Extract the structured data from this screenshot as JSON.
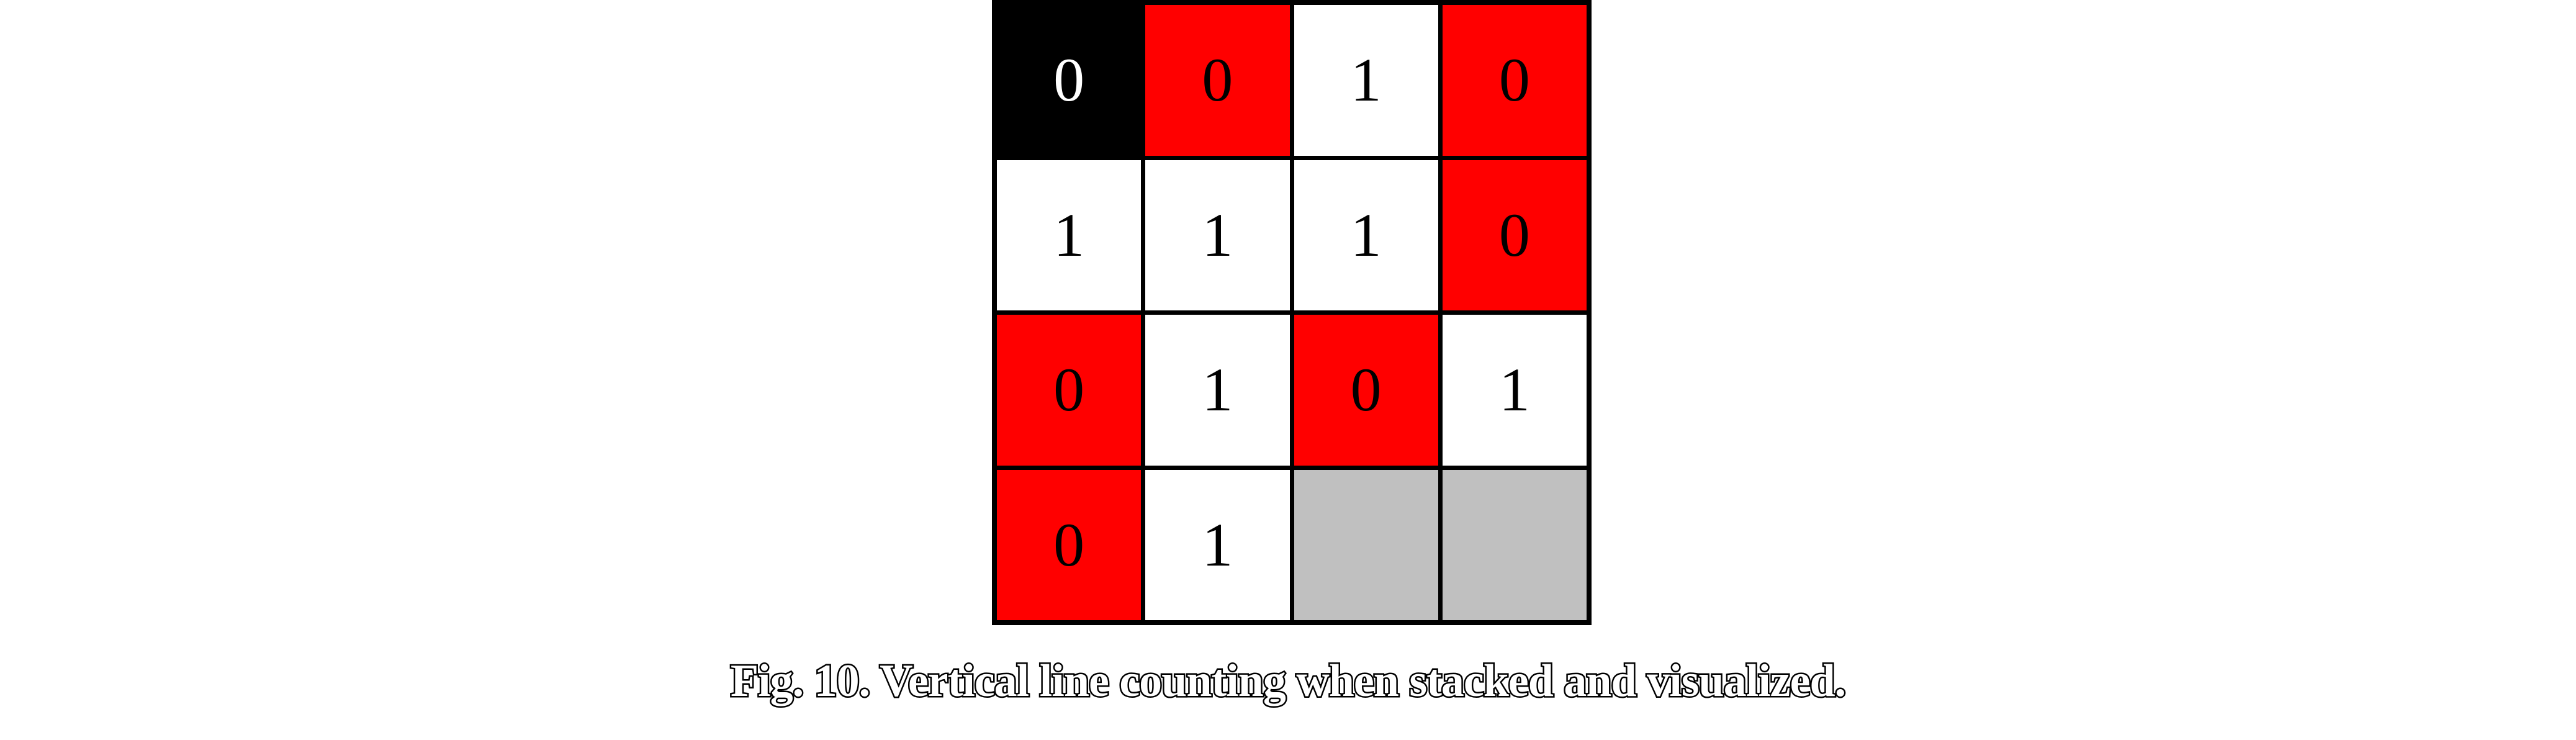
{
  "grid": {
    "rows": [
      [
        {
          "value": "0",
          "color": "black"
        },
        {
          "value": "0",
          "color": "red"
        },
        {
          "value": "1",
          "color": "white"
        },
        {
          "value": "0",
          "color": "red"
        }
      ],
      [
        {
          "value": "1",
          "color": "white"
        },
        {
          "value": "1",
          "color": "white"
        },
        {
          "value": "1",
          "color": "white"
        },
        {
          "value": "0",
          "color": "red"
        }
      ],
      [
        {
          "value": "0",
          "color": "red"
        },
        {
          "value": "1",
          "color": "white"
        },
        {
          "value": "0",
          "color": "red"
        },
        {
          "value": "1",
          "color": "white"
        }
      ],
      [
        {
          "value": "0",
          "color": "red"
        },
        {
          "value": "1",
          "color": "white"
        },
        {
          "value": "",
          "color": "gray"
        },
        {
          "value": "",
          "color": "gray"
        }
      ]
    ],
    "colors": {
      "red": "#ff0000",
      "white": "#ffffff",
      "black": "#000000",
      "gray": "#c0c0c0"
    }
  },
  "caption": "Fig. 10. Vertical line counting when stacked and visualized."
}
